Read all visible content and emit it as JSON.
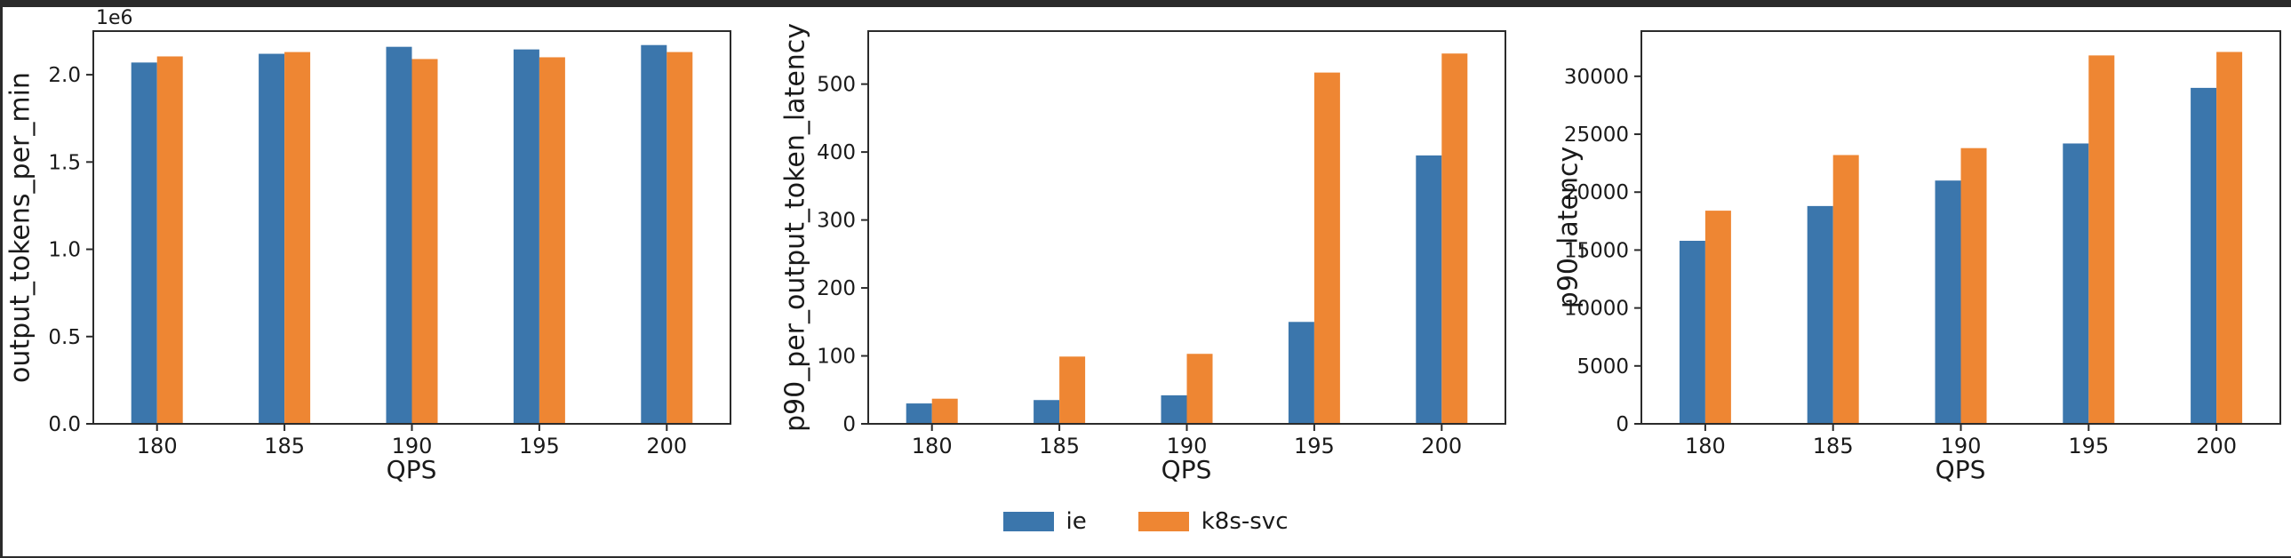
{
  "page": {
    "background": "#ffffff",
    "frame_color": "#2b2b2b",
    "spine_color": "#2b2b2b",
    "text_color": "#1a1a1a"
  },
  "legend": {
    "items": [
      {
        "label": "ie",
        "color": "#3B76AC"
      },
      {
        "label": "k8s-svc",
        "color": "#EE8633"
      }
    ]
  },
  "chart_data": [
    {
      "type": "bar",
      "title": "",
      "xlabel": "QPS",
      "ylabel": "output_tokens_per_min",
      "offset_text": "1e6",
      "categories": [
        "180",
        "185",
        "190",
        "195",
        "200"
      ],
      "series": [
        {
          "name": "ie",
          "color": "#3B76AC",
          "values": [
            2070000,
            2120000,
            2160000,
            2145000,
            2170000
          ]
        },
        {
          "name": "k8s-svc",
          "color": "#EE8633",
          "values": [
            2105000,
            2130000,
            2090000,
            2100000,
            2130000
          ]
        }
      ],
      "ylim": [
        0,
        2250000
      ],
      "yticks": [
        {
          "value": 0,
          "label": "0.0"
        },
        {
          "value": 500000,
          "label": "0.5"
        },
        {
          "value": 1000000,
          "label": "1.0"
        },
        {
          "value": 1500000,
          "label": "1.5"
        },
        {
          "value": 2000000,
          "label": "2.0"
        }
      ],
      "grid": false,
      "legend_position": "figure-bottom-center"
    },
    {
      "type": "bar",
      "title": "",
      "xlabel": "QPS",
      "ylabel": "p90_per_output_token_latency",
      "offset_text": "",
      "categories": [
        "180",
        "185",
        "190",
        "195",
        "200"
      ],
      "series": [
        {
          "name": "ie",
          "color": "#3B76AC",
          "values": [
            30,
            35,
            42,
            150,
            395
          ]
        },
        {
          "name": "k8s-svc",
          "color": "#EE8633",
          "values": [
            37,
            99,
            103,
            517,
            545
          ]
        }
      ],
      "ylim": [
        0,
        578
      ],
      "yticks": [
        {
          "value": 0,
          "label": "0"
        },
        {
          "value": 100,
          "label": "100"
        },
        {
          "value": 200,
          "label": "200"
        },
        {
          "value": 300,
          "label": "300"
        },
        {
          "value": 400,
          "label": "400"
        },
        {
          "value": 500,
          "label": "500"
        }
      ],
      "grid": false,
      "legend_position": "figure-bottom-center"
    },
    {
      "type": "bar",
      "title": "",
      "xlabel": "QPS",
      "ylabel": "p90_latency",
      "offset_text": "",
      "categories": [
        "180",
        "185",
        "190",
        "195",
        "200"
      ],
      "series": [
        {
          "name": "ie",
          "color": "#3B76AC",
          "values": [
            15800,
            18800,
            21000,
            24200,
            29000
          ]
        },
        {
          "name": "k8s-svc",
          "color": "#EE8633",
          "values": [
            18400,
            23200,
            23800,
            31800,
            32100
          ]
        }
      ],
      "ylim": [
        0,
        33900
      ],
      "yticks": [
        {
          "value": 0,
          "label": "0"
        },
        {
          "value": 5000,
          "label": "5000"
        },
        {
          "value": 10000,
          "label": "10000"
        },
        {
          "value": 15000,
          "label": "15000"
        },
        {
          "value": 20000,
          "label": "20000"
        },
        {
          "value": 25000,
          "label": "25000"
        },
        {
          "value": 30000,
          "label": "30000"
        }
      ],
      "grid": false,
      "legend_position": "figure-bottom-center"
    }
  ]
}
